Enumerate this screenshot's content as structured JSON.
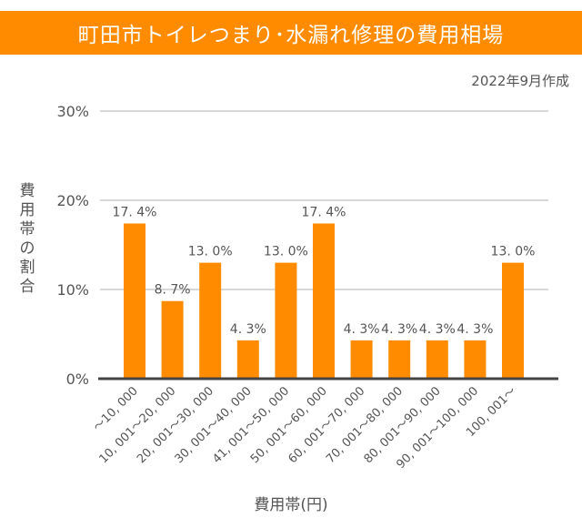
{
  "header": {
    "title": "町田市トイレつまり･水漏れ修理の費用相場",
    "date_note": "2022年9月作成"
  },
  "colors": {
    "accent": "#FF8C00",
    "bar": "#FF8C00",
    "grid": "#cccccc",
    "axis": "#444444",
    "text": "#555555"
  },
  "chart_data": {
    "type": "bar",
    "title": "町田市トイレつまり･水漏れ修理の費用相場",
    "xlabel": "費用帯(円)",
    "ylabel": "費用帯の割合",
    "ylim": [
      0,
      30
    ],
    "yticks": [
      0,
      10,
      20,
      30
    ],
    "ytick_labels": [
      "0%",
      "10%",
      "20%",
      "30%"
    ],
    "grid": true,
    "categories": [
      "~10,000",
      "10,001~20,000",
      "20,001~30,000",
      "30,001~40,000",
      "41,001~50,000",
      "50,001~60,000",
      "60,001~70,000",
      "70,001~80,000",
      "80,001~90,000",
      "90,001~100,000",
      "100,001~"
    ],
    "category_labels": [
      "～10, 000",
      "10, 001～20, 000",
      "20, 001～30, 000",
      "30, 001～40, 000",
      "41, 001～50, 000",
      "50, 001～60, 000",
      "60, 001～70, 000",
      "70, 001～80, 000",
      "80, 001～90, 000",
      "90, 001～100, 000",
      "100, 001～"
    ],
    "values": [
      17.4,
      8.7,
      13.0,
      4.3,
      13.0,
      17.4,
      4.3,
      4.3,
      4.3,
      4.3,
      13.0
    ],
    "value_labels": [
      "17. 4%",
      "8. 7%",
      "13. 0%",
      "4. 3%",
      "13. 0%",
      "17. 4%",
      "4. 3%",
      "4. 3%",
      "4. 3%",
      "4. 3%",
      "13. 0%"
    ]
  }
}
